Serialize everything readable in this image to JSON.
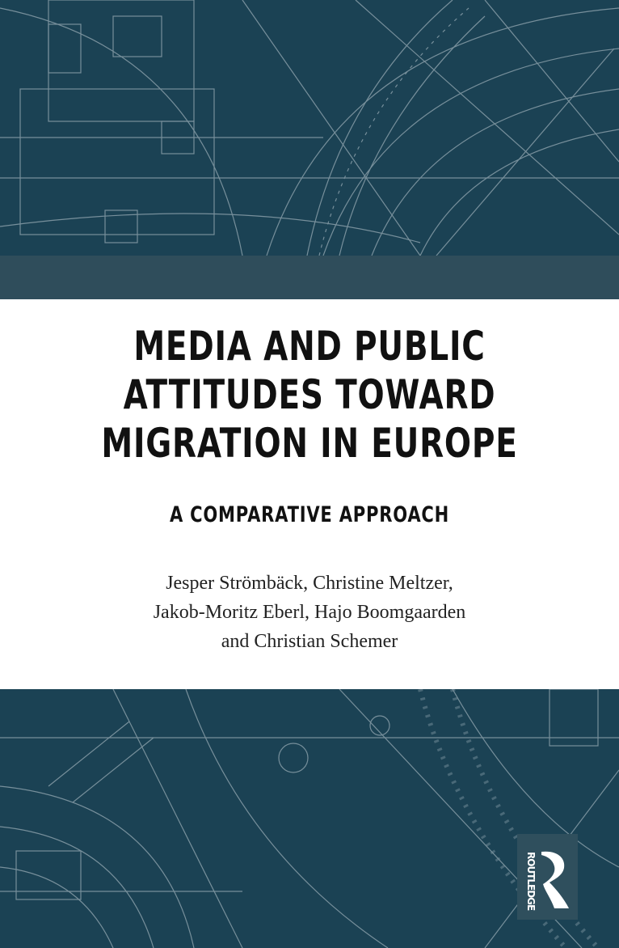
{
  "cover": {
    "title_lines": [
      "MEDIA AND PUBLIC",
      "ATTITUDES TOWARD",
      "MIGRATION IN EUROPE"
    ],
    "subtitle": "A COMPARATIVE APPROACH",
    "author_lines": [
      "Jesper Strömbäck, Christine Meltzer,",
      "Jakob-Moritz Eberl, Hajo Boomgaarden",
      "and Christian Schemer"
    ],
    "publisher": "ROUTLEDGE"
  },
  "colors": {
    "dark_teal": "#1b4254",
    "band": "#2f4d5b",
    "line_art": "#8ea3ad"
  }
}
